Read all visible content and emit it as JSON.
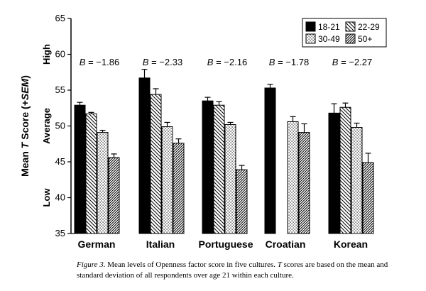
{
  "chart_data": {
    "type": "bar",
    "title": "",
    "xlabel": "",
    "ylabel": "Mean T Score (+SEM)",
    "ylabel_parts": [
      "Mean ",
      "T",
      " Score (+",
      "SEM",
      ")"
    ],
    "ylim": [
      35,
      65
    ],
    "yticks": [
      35,
      40,
      45,
      50,
      55,
      60,
      65
    ],
    "y_bands": [
      {
        "label": "Low",
        "value": 40
      },
      {
        "label": "Average",
        "value": 50
      },
      {
        "label": "High",
        "value": 60
      }
    ],
    "categories": [
      "German",
      "Italian",
      "Portuguese",
      "Croatian",
      "Korean"
    ],
    "series": [
      {
        "name": "18-21",
        "pattern": "solid",
        "values": [
          52.9,
          56.7,
          53.5,
          55.3,
          51.8
        ],
        "sem": [
          0.4,
          1.2,
          0.5,
          0.5,
          1.3
        ]
      },
      {
        "name": "22-29",
        "pattern": "hatch",
        "values": [
          51.7,
          54.4,
          52.9,
          null,
          52.6
        ],
        "sem": [
          0.2,
          0.8,
          0.5,
          null,
          0.6
        ]
      },
      {
        "name": "30-49",
        "pattern": "dots",
        "values": [
          49.1,
          49.9,
          50.2,
          50.6,
          49.8
        ],
        "sem": [
          0.3,
          0.6,
          0.3,
          0.7,
          0.6
        ]
      },
      {
        "name": "50+",
        "pattern": "dense",
        "values": [
          45.6,
          47.6,
          43.9,
          49.1,
          44.9
        ],
        "sem": [
          0.5,
          0.6,
          0.6,
          1.2,
          1.3
        ]
      }
    ],
    "b_annotations": [
      {
        "label": "B",
        "value": "= −1.86"
      },
      {
        "label": "B",
        "value": "= −2.33"
      },
      {
        "label": "B",
        "value": "= −2.16"
      },
      {
        "label": "B",
        "value": "= −1.78"
      },
      {
        "label": "B",
        "value": "= −2.27"
      }
    ],
    "legend_position": "top-right",
    "grid": false
  },
  "caption": {
    "lead": "Figure 3.",
    "text_parts": [
      "  Mean levels of Openness factor score in five cultures. ",
      "T",
      " scores are based on the mean and standard deviation of all respondents over age 21 within each culture."
    ]
  }
}
